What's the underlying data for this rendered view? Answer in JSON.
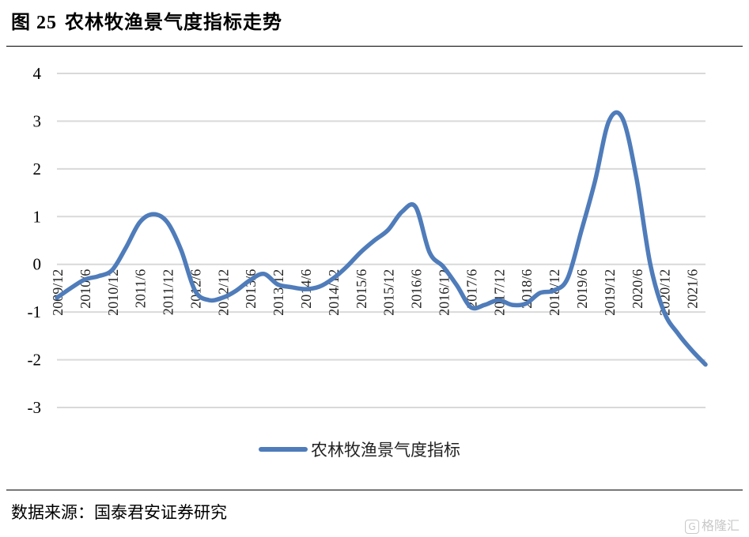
{
  "header": {
    "figure_number": "图 25",
    "title": "农林牧渔景气度指标走势"
  },
  "footer": {
    "source": "数据来源：国泰君安证券研究"
  },
  "watermark": {
    "icon": "G",
    "text": "格隆汇"
  },
  "colors": {
    "line": "#4f7cba",
    "grid": "#d9d9d9",
    "text": "#000000"
  },
  "chart_data": {
    "type": "line",
    "title": "农林牧渔景气度指标走势",
    "grid": true,
    "legend_position": "bottom",
    "ylim": [
      -3,
      4
    ],
    "yticks": [
      "4",
      "3",
      "2",
      "1",
      "0",
      "-1",
      "-2",
      "-3"
    ],
    "xticks": [
      "2009/12",
      "2010/6",
      "2010/12",
      "2011/6",
      "2011/12",
      "2012/6",
      "2012/12",
      "2013/6",
      "2013/12",
      "2014/6",
      "2014/12",
      "2015/6",
      "2015/12",
      "2016/6",
      "2016/12",
      "2017/6",
      "2017/12",
      "2018/6",
      "2018/12",
      "2019/6",
      "2019/12",
      "2020/6",
      "2020/12",
      "2021/6"
    ],
    "series": [
      {
        "name": "农林牧渔景气度指标",
        "x": [
          "2009/12",
          "2010/3",
          "2010/6",
          "2010/9",
          "2010/12",
          "2011/3",
          "2011/6",
          "2011/9",
          "2011/12",
          "2012/3",
          "2012/6",
          "2012/9",
          "2012/12",
          "2013/3",
          "2013/6",
          "2013/9",
          "2013/12",
          "2014/3",
          "2014/6",
          "2014/9",
          "2014/12",
          "2015/3",
          "2015/6",
          "2015/9",
          "2015/12",
          "2016/3",
          "2016/6",
          "2016/9",
          "2016/12",
          "2017/3",
          "2017/6",
          "2017/9",
          "2017/12",
          "2018/3",
          "2018/6",
          "2018/9",
          "2018/12",
          "2019/3",
          "2019/6",
          "2019/9",
          "2019/12",
          "2020/3",
          "2020/6",
          "2020/9",
          "2020/12",
          "2021/3",
          "2021/6",
          "2021/9"
        ],
        "values": [
          -0.7,
          -0.5,
          -0.32,
          -0.25,
          -0.12,
          0.35,
          0.88,
          1.05,
          0.88,
          0.3,
          -0.55,
          -0.75,
          -0.7,
          -0.55,
          -0.33,
          -0.2,
          -0.42,
          -0.48,
          -0.52,
          -0.47,
          -0.3,
          -0.05,
          0.25,
          0.5,
          0.72,
          1.1,
          1.2,
          0.25,
          -0.05,
          -0.45,
          -0.9,
          -0.85,
          -0.75,
          -0.85,
          -0.82,
          -0.6,
          -0.55,
          -0.3,
          0.7,
          1.75,
          3.0,
          3.05,
          1.8,
          0.0,
          -1.0,
          -1.45,
          -1.8,
          -2.1
        ]
      }
    ]
  }
}
